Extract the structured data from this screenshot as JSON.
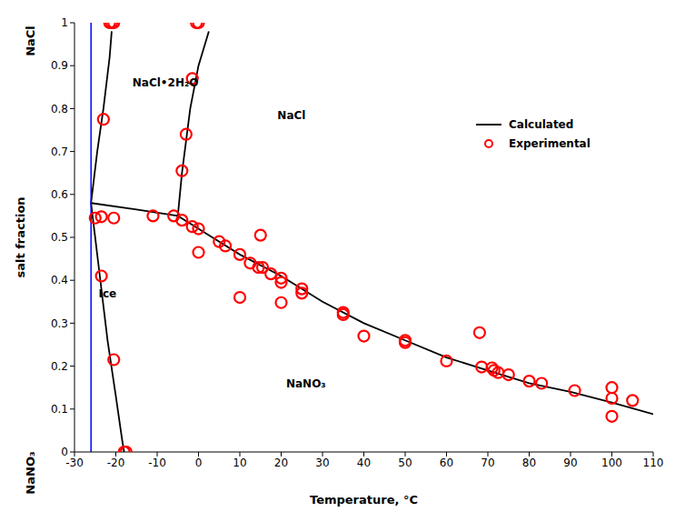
{
  "chart_data": {
    "type": "scatter",
    "xlabel": "Temperature, °C",
    "ylabel": "salt fraction",
    "ylabel_top": "NaCl",
    "ylabel_bottom": "NaNO₃",
    "xlim": [
      -30,
      110
    ],
    "xticks": [
      -30,
      -20,
      -10,
      0,
      10,
      20,
      30,
      40,
      50,
      60,
      70,
      80,
      90,
      100,
      110
    ],
    "ylim": [
      0,
      1
    ],
    "yticks": [
      0,
      0.1,
      0.2,
      0.3,
      0.4,
      0.5,
      0.6,
      0.7,
      0.8,
      0.9,
      1
    ],
    "grid": false,
    "legend": "upper right",
    "series": [
      {
        "name": "Calculated",
        "type": "line",
        "color": "#000000",
        "line_style": "solid",
        "segments": [
          {
            "x": [
              -26,
              -24,
              -22,
              -20,
              -18.5,
              -18
            ],
            "values": [
              0.58,
              0.42,
              0.26,
              0.13,
              0.03,
              0
            ]
          },
          {
            "x": [
              -26,
              -24.5,
              -23,
              -21.5,
              -21
            ],
            "values": [
              0.58,
              0.7,
              0.8,
              0.92,
              0.98
            ]
          },
          {
            "x": [
              -5,
              -4,
              -2,
              0,
              2.5
            ],
            "values": [
              0.55,
              0.65,
              0.8,
              0.9,
              0.98
            ]
          },
          {
            "x": [
              -26,
              -15,
              -5,
              0,
              10,
              20,
              30,
              40,
              50,
              60,
              70,
              80,
              90,
              100,
              110
            ],
            "values": [
              0.58,
              0.565,
              0.55,
              0.52,
              0.46,
              0.41,
              0.35,
              0.3,
              0.26,
              0.22,
              0.19,
              0.16,
              0.14,
              0.115,
              0.088
            ]
          }
        ]
      },
      {
        "name": "Experimental",
        "type": "scatter",
        "color": "#ff0000",
        "marker": "circle",
        "x": [
          -21.5,
          -21,
          -20.5,
          0,
          -0.5,
          -1.5,
          -3,
          -4,
          -23,
          -23.5,
          -25,
          -23.5,
          -20.5,
          -20.5,
          -18,
          -17.5,
          -11,
          -6,
          -4,
          -1.5,
          0,
          0,
          5,
          6.5,
          10,
          10,
          12.5,
          14.5,
          15,
          15.5,
          17.5,
          20,
          20,
          20,
          25,
          25,
          35,
          35,
          40,
          50,
          50,
          60,
          68,
          68.5,
          71,
          71.5,
          72.5,
          75,
          80,
          83,
          91,
          100,
          100,
          100,
          105
        ],
        "values": [
          1,
          1,
          1,
          1,
          1,
          0.87,
          0.74,
          0.655,
          0.775,
          0.41,
          0.545,
          0.548,
          0.545,
          0.215,
          0,
          0,
          0.55,
          0.55,
          0.54,
          0.525,
          0.52,
          0.465,
          0.49,
          0.48,
          0.46,
          0.36,
          0.44,
          0.43,
          0.505,
          0.43,
          0.415,
          0.405,
          0.395,
          0.348,
          0.38,
          0.37,
          0.325,
          0.32,
          0.27,
          0.26,
          0.255,
          0.212,
          0.278,
          0.198,
          0.196,
          0.19,
          0.185,
          0.18,
          0.165,
          0.16,
          0.143,
          0.15,
          0.125,
          0.083,
          0.12
        ]
      },
      {
        "type": "line",
        "color": "#0000ff",
        "line_style": "solid",
        "x": [
          -26,
          -26
        ],
        "values": [
          0,
          1
        ]
      }
    ],
    "annotations": [
      {
        "text": "NaCl•2H₂O",
        "x": -8,
        "y": 0.86
      },
      {
        "text": "NaCl",
        "x": 22.5,
        "y": 0.785
      },
      {
        "text": "Ice",
        "x": -22,
        "y": 0.37
      },
      {
        "text": "NaNO₃",
        "x": 26,
        "y": 0.16
      }
    ]
  }
}
